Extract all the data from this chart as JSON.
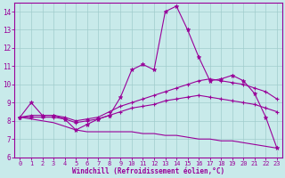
{
  "xlabel": "Windchill (Refroidissement éolien,°C)",
  "xlim": [
    -0.5,
    23.5
  ],
  "ylim": [
    6,
    14.5
  ],
  "yticks": [
    6,
    7,
    8,
    9,
    10,
    11,
    12,
    13,
    14
  ],
  "xticks": [
    0,
    1,
    2,
    3,
    4,
    5,
    6,
    7,
    8,
    9,
    10,
    11,
    12,
    13,
    14,
    15,
    16,
    17,
    18,
    19,
    20,
    21,
    22,
    23
  ],
  "background_color": "#c8eaea",
  "grid_color": "#a0cccc",
  "line_color": "#990099",
  "hours": [
    0,
    1,
    2,
    3,
    4,
    5,
    6,
    7,
    8,
    9,
    10,
    11,
    12,
    13,
    14,
    15,
    16,
    17,
    18,
    19,
    20,
    21,
    22,
    23
  ],
  "temp": [
    8.2,
    9.0,
    8.3,
    8.3,
    8.1,
    7.5,
    7.8,
    8.1,
    8.3,
    9.3,
    10.8,
    11.1,
    10.8,
    14.0,
    14.3,
    13.0,
    11.5,
    10.2,
    10.3,
    10.5,
    10.2,
    9.5,
    8.2,
    6.5
  ],
  "line_upper": [
    8.2,
    8.3,
    8.3,
    8.3,
    8.2,
    8.0,
    8.1,
    8.2,
    8.5,
    8.8,
    9.0,
    9.2,
    9.4,
    9.6,
    9.8,
    10.0,
    10.2,
    10.3,
    10.2,
    10.1,
    10.0,
    9.8,
    9.6,
    9.2
  ],
  "line_mid": [
    8.2,
    8.2,
    8.2,
    8.2,
    8.1,
    7.9,
    8.0,
    8.1,
    8.3,
    8.5,
    8.7,
    8.8,
    8.9,
    9.1,
    9.2,
    9.3,
    9.4,
    9.3,
    9.2,
    9.1,
    9.0,
    8.9,
    8.7,
    8.5
  ],
  "line_lower": [
    8.2,
    8.1,
    8.0,
    7.9,
    7.7,
    7.5,
    7.4,
    7.4,
    7.4,
    7.4,
    7.4,
    7.3,
    7.3,
    7.2,
    7.2,
    7.1,
    7.0,
    7.0,
    6.9,
    6.9,
    6.8,
    6.7,
    6.6,
    6.5
  ]
}
